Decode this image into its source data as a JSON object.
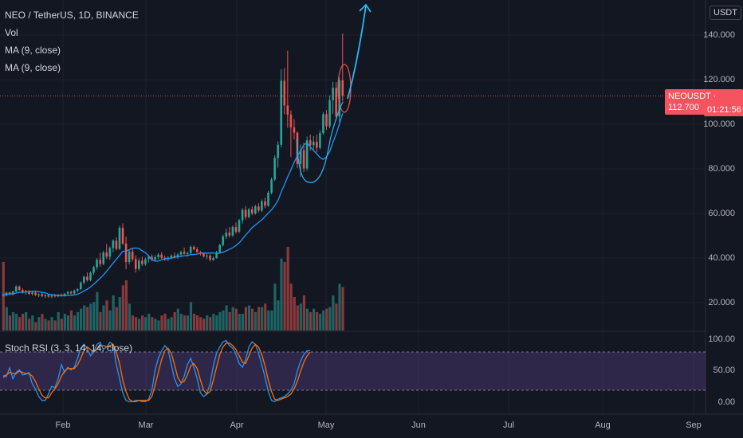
{
  "header": {
    "symbol_line": "NEO / TetherUS, 1D, BINANCE",
    "indicators": [
      "Vol",
      "MA (9, close)",
      "MA (9, close)"
    ],
    "oscillator": "Stoch RSI (3, 3, 14, 14, close)"
  },
  "price_axis": {
    "currency": "USDT",
    "ticks": [
      "140.000",
      "120.000",
      "100.000",
      "80.000",
      "60.000",
      "40.000",
      "20.000"
    ]
  },
  "rsi_axis": {
    "ticks": [
      "100.00",
      "50.00",
      "0.00"
    ]
  },
  "time_axis": {
    "ticks": [
      "Feb",
      "Mar",
      "Apr",
      "May",
      "Jun",
      "Jul",
      "Aug",
      "Sep"
    ]
  },
  "price_badge": {
    "label": "NEOUSDT",
    "value": "112.700",
    "countdown": "01:21:56"
  },
  "colors": {
    "background": "#131722",
    "up": "#26a69a",
    "down": "#ef5350",
    "ma": "#2196f3",
    "stoch_k": "#2196f3",
    "stoch_d": "#ff6d00",
    "stoch_band": "#7e57c2",
    "annotation": "#29b6f6"
  },
  "chart_data": {
    "type": "candlestick",
    "symbol": "NEOUSDT",
    "timeframe": "1D",
    "exchange": "BINANCE",
    "candles": [
      [
        23.6,
        24.2,
        22.6,
        23.1
      ],
      [
        23.1,
        24.8,
        22.8,
        24.5
      ],
      [
        24.5,
        25.0,
        23.4,
        23.6
      ],
      [
        23.6,
        25.4,
        23.2,
        25.0
      ],
      [
        25.0,
        27.8,
        24.6,
        27.2
      ],
      [
        27.2,
        27.7,
        25.3,
        25.7
      ],
      [
        25.7,
        26.4,
        24.1,
        24.8
      ],
      [
        24.8,
        25.7,
        23.6,
        25.2
      ],
      [
        25.2,
        25.6,
        23.5,
        23.9
      ],
      [
        23.9,
        24.9,
        23.2,
        24.5
      ],
      [
        24.5,
        25.1,
        23.0,
        23.4
      ],
      [
        23.4,
        24.2,
        22.5,
        23.8
      ],
      [
        23.8,
        24.5,
        22.4,
        22.9
      ],
      [
        22.9,
        23.8,
        22.1,
        23.4
      ],
      [
        23.4,
        23.9,
        22.2,
        22.7
      ],
      [
        22.7,
        23.7,
        22.0,
        23.2
      ],
      [
        23.2,
        23.8,
        22.3,
        22.8
      ],
      [
        22.8,
        23.9,
        22.4,
        23.5
      ],
      [
        23.5,
        24.1,
        22.6,
        23.0
      ],
      [
        23.0,
        24.3,
        22.7,
        24.0
      ],
      [
        24.0,
        25.2,
        23.4,
        24.8
      ],
      [
        24.8,
        25.4,
        23.6,
        24.2
      ],
      [
        24.2,
        25.8,
        23.8,
        25.4
      ],
      [
        25.4,
        26.5,
        24.7,
        26.1
      ],
      [
        26.1,
        29.5,
        25.6,
        29.0
      ],
      [
        29.0,
        32.1,
        28.2,
        31.6
      ],
      [
        31.6,
        33.5,
        29.4,
        30.1
      ],
      [
        30.1,
        34.0,
        29.6,
        33.4
      ],
      [
        33.4,
        36.5,
        32.5,
        35.9
      ],
      [
        35.9,
        40.0,
        34.8,
        39.2
      ],
      [
        39.2,
        42.4,
        36.1,
        37.3
      ],
      [
        37.3,
        43.3,
        36.8,
        42.5
      ],
      [
        42.5,
        46.3,
        39.6,
        40.6
      ],
      [
        40.6,
        45.2,
        39.2,
        44.5
      ],
      [
        44.5,
        48.4,
        42.6,
        47.8
      ],
      [
        47.8,
        49.2,
        43.4,
        44.1
      ],
      [
        44.1,
        54.5,
        43.6,
        53.5
      ],
      [
        53.5,
        55.6,
        45.8,
        46.5
      ],
      [
        46.5,
        49.6,
        35.0,
        38.2
      ],
      [
        38.2,
        43.6,
        37.1,
        42.9
      ],
      [
        42.9,
        44.3,
        38.4,
        39.5
      ],
      [
        39.5,
        41.2,
        33.5,
        35.1
      ],
      [
        35.1,
        39.8,
        34.2,
        38.8
      ],
      [
        38.8,
        40.6,
        36.4,
        37.3
      ],
      [
        37.3,
        40.2,
        36.6,
        39.5
      ],
      [
        39.5,
        41.3,
        38.1,
        40.6
      ],
      [
        40.6,
        41.6,
        38.5,
        39.2
      ],
      [
        39.2,
        41.3,
        38.6,
        40.4
      ],
      [
        40.4,
        42.2,
        39.4,
        41.5
      ],
      [
        41.5,
        42.6,
        39.6,
        40.1
      ],
      [
        40.1,
        41.1,
        38.7,
        39.6
      ],
      [
        39.6,
        40.8,
        38.5,
        40.2
      ],
      [
        40.2,
        41.7,
        39.5,
        41.0
      ],
      [
        41.0,
        42.5,
        39.8,
        40.4
      ],
      [
        40.4,
        42.1,
        39.6,
        41.6
      ],
      [
        41.6,
        43.3,
        40.7,
        42.7
      ],
      [
        42.7,
        44.7,
        41.6,
        41.9
      ],
      [
        41.9,
        42.9,
        40.6,
        42.2
      ],
      [
        42.2,
        45.6,
        41.8,
        45.0
      ],
      [
        45.0,
        45.7,
        43.4,
        43.9
      ],
      [
        43.9,
        44.9,
        42.4,
        42.6
      ],
      [
        42.6,
        43.3,
        41.1,
        42.0
      ],
      [
        42.0,
        42.5,
        40.2,
        40.7
      ],
      [
        40.7,
        41.9,
        39.5,
        41.1
      ],
      [
        41.1,
        41.7,
        38.5,
        39.2
      ],
      [
        39.2,
        40.7,
        38.6,
        40.0
      ],
      [
        40.0,
        43.2,
        39.7,
        42.5
      ],
      [
        42.5,
        46.4,
        42.1,
        45.8
      ],
      [
        45.8,
        50.5,
        45.2,
        49.6
      ],
      [
        49.6,
        53.2,
        48.5,
        51.4
      ],
      [
        51.4,
        53.9,
        49.2,
        50.1
      ],
      [
        50.1,
        54.6,
        49.5,
        53.9
      ],
      [
        53.9,
        55.9,
        51.0,
        51.8
      ],
      [
        51.8,
        57.6,
        51.2,
        56.9
      ],
      [
        56.9,
        62.4,
        55.5,
        61.6
      ],
      [
        61.6,
        63.3,
        57.3,
        58.4
      ],
      [
        58.4,
        62.5,
        57.8,
        61.8
      ],
      [
        61.8,
        63.2,
        59.2,
        60.0
      ],
      [
        60.0,
        63.9,
        59.4,
        63.1
      ],
      [
        63.1,
        64.6,
        60.5,
        61.3
      ],
      [
        61.3,
        66.2,
        60.7,
        65.4
      ],
      [
        65.4,
        67.1,
        62.4,
        63.5
      ],
      [
        63.5,
        70.1,
        62.9,
        69.3
      ],
      [
        69.3,
        76.1,
        68.6,
        75.2
      ],
      [
        75.2,
        86.1,
        74.5,
        84.9
      ],
      [
        84.9,
        92.3,
        80.5,
        90.8
      ],
      [
        90.8,
        124.7,
        89.6,
        119.5
      ],
      [
        119.5,
        125.2,
        104.5,
        108.4
      ],
      [
        108.4,
        133.0,
        98.4,
        104.3
      ],
      [
        104.3,
        106.2,
        85.3,
        98.6
      ],
      [
        98.6,
        102.3,
        93.2,
        96.2
      ],
      [
        96.2,
        96.8,
        80.4,
        82.2
      ],
      [
        82.2,
        90.9,
        76.4,
        88.4
      ],
      [
        88.4,
        91.8,
        78.6,
        80.2
      ],
      [
        80.2,
        94.5,
        79.1,
        92.8
      ],
      [
        92.8,
        95.4,
        88.1,
        90.6
      ],
      [
        90.6,
        94.7,
        88.7,
        92.1
      ],
      [
        92.1,
        95.3,
        87.4,
        89.4
      ],
      [
        89.4,
        97.2,
        88.7,
        96.0
      ],
      [
        96.0,
        105.5,
        95.3,
        104.5
      ],
      [
        104.5,
        106.4,
        97.4,
        99.1
      ],
      [
        99.1,
        112.8,
        98.2,
        110.8
      ],
      [
        110.8,
        119.1,
        104.6,
        116.3
      ],
      [
        116.3,
        118.9,
        101.7,
        103.5
      ],
      [
        103.5,
        121.0,
        101.0,
        119.7
      ],
      [
        119.7,
        140.7,
        110.2,
        112.7
      ]
    ],
    "volume": [
      82,
      28,
      18,
      22,
      20,
      16,
      20,
      22,
      14,
      18,
      10,
      16,
      20,
      14,
      12,
      16,
      12,
      22,
      14,
      20,
      18,
      24,
      18,
      22,
      26,
      30,
      28,
      32,
      34,
      46,
      22,
      30,
      36,
      24,
      42,
      28,
      40,
      54,
      60,
      32,
      18,
      16,
      14,
      18,
      16,
      20,
      16,
      14,
      12,
      18,
      20,
      14,
      16,
      22,
      26,
      20,
      18,
      18,
      34,
      20,
      18,
      16,
      14,
      18,
      16,
      20,
      18,
      22,
      24,
      30,
      22,
      28,
      26,
      20,
      20,
      28,
      30,
      26,
      22,
      28,
      28,
      32,
      24,
      24,
      56,
      36,
      86,
      82,
      100,
      56,
      40,
      30,
      32,
      42,
      26,
      22,
      26,
      22,
      20,
      24,
      26,
      28,
      42,
      32,
      56,
      52
    ],
    "ma9": [
      23.6,
      23.8,
      23.9,
      24.0,
      24.3,
      24.6,
      24.6,
      24.8,
      24.9,
      25.1,
      25.1,
      24.9,
      24.6,
      24.4,
      23.8,
      23.6,
      23.4,
      23.3,
      23.1,
      23.1,
      23.2,
      23.3,
      23.5,
      23.8,
      24.4,
      25.2,
      26.0,
      27.0,
      28.2,
      29.6,
      30.9,
      32.4,
      34.1,
      35.9,
      37.7,
      39.4,
      41.2,
      43.0,
      43.1,
      43.7,
      44.4,
      44.5,
      44.3,
      43.2,
      42.4,
      41.0,
      39.2,
      38.6,
      38.6,
      39.2,
      39.6,
      39.7,
      40.0,
      40.3,
      40.6,
      40.8,
      41.0,
      41.2,
      41.5,
      41.6,
      41.8,
      42.1,
      42.2,
      42.2,
      42.2,
      42.3,
      42.1,
      42.2,
      42.6,
      43.2,
      43.9,
      44.6,
      45.6,
      46.8,
      48.5,
      50.3,
      51.9,
      53.6,
      54.8,
      56.0,
      57.1,
      58.6,
      60.1,
      61.6,
      63.5,
      65.8,
      69.6,
      72.9,
      76.4,
      79.5,
      82.9,
      85.9,
      88.0,
      90.8,
      91.6,
      89.9,
      88.2,
      86.7,
      85.1,
      84.2,
      85.4,
      87.8,
      91.9,
      95.6,
      100.0,
      104.9
    ],
    "stoch_rsi": {
      "k": [
        40,
        42,
        55,
        38,
        48,
        52,
        44,
        45,
        48,
        30,
        22,
        10,
        4,
        4,
        14,
        26,
        24,
        38,
        60,
        48,
        56,
        52,
        56,
        70,
        86,
        92,
        86,
        74,
        80,
        92,
        95,
        84,
        88,
        95,
        92,
        60,
        38,
        16,
        4,
        2,
        2,
        4,
        4,
        2,
        2,
        6,
        20,
        52,
        70,
        82,
        90,
        84,
        60,
        38,
        26,
        30,
        42,
        60,
        70,
        56,
        38,
        16,
        10,
        14,
        30,
        58,
        78,
        88,
        96,
        98,
        90,
        86,
        76,
        62,
        56,
        68,
        88,
        96,
        92,
        78,
        60,
        40,
        18,
        4,
        2,
        6,
        8,
        10,
        14,
        20,
        30,
        50,
        66,
        76,
        82,
        82
      ],
      "d": [
        42,
        44,
        48,
        46,
        46,
        50,
        48,
        46,
        46,
        42,
        34,
        22,
        12,
        8,
        8,
        16,
        22,
        30,
        42,
        50,
        54,
        54,
        54,
        60,
        70,
        82,
        88,
        84,
        80,
        84,
        90,
        90,
        88,
        90,
        92,
        80,
        62,
        36,
        18,
        6,
        2,
        2,
        4,
        4,
        4,
        4,
        10,
        28,
        48,
        68,
        82,
        86,
        78,
        60,
        40,
        32,
        34,
        44,
        58,
        62,
        54,
        36,
        20,
        14,
        18,
        36,
        56,
        76,
        88,
        94,
        94,
        90,
        84,
        74,
        64,
        62,
        74,
        86,
        92,
        88,
        76,
        58,
        36,
        18,
        6,
        4,
        6,
        8,
        10,
        14,
        22,
        34,
        50,
        64,
        74,
        80
      ]
    },
    "price_range": [
      14.0,
      144.0
    ],
    "stoch_range": [
      0,
      100
    ],
    "stoch_bands": [
      80,
      20
    ],
    "last_price": 112.7,
    "x_labels": [
      "Feb",
      "Mar",
      "Apr",
      "May",
      "Jun",
      "Jul",
      "Aug",
      "Sep"
    ],
    "annotations": [
      {
        "type": "ellipse",
        "color": "#ef5350"
      },
      {
        "type": "curve-arrow",
        "color": "#29b6f6"
      }
    ]
  }
}
